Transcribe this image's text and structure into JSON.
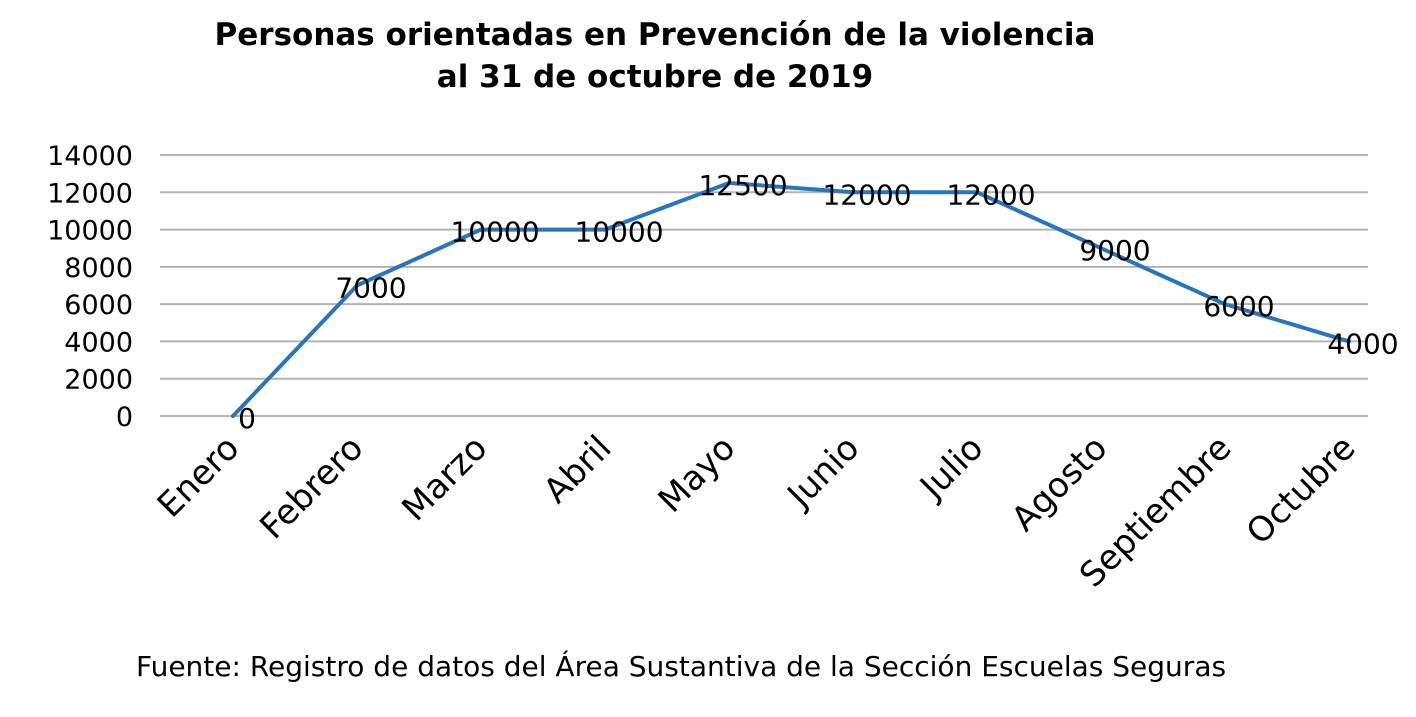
{
  "chart_data": {
    "type": "line",
    "title_lines": [
      "Personas orientadas en Prevención de la violencia",
      "al 31 de octubre de 2019"
    ],
    "categories": [
      "Enero",
      "Febrero",
      "Marzo",
      "Abril",
      "Mayo",
      "Junio",
      "Julio",
      "Agosto",
      "Septiembre",
      "Octubre"
    ],
    "values": [
      0,
      7000,
      10000,
      10000,
      12500,
      12000,
      12000,
      9000,
      6000,
      4000
    ],
    "y_ticks": [
      0,
      2000,
      4000,
      6000,
      8000,
      10000,
      12000,
      14000
    ],
    "ylim": [
      0,
      14000
    ],
    "grid": true,
    "legend": "none",
    "line_color": "#2a75b8",
    "grid_color": "#b3b3b3"
  },
  "source": "Fuente: Registro de datos del Área Sustantiva de la Sección Escuelas Seguras"
}
